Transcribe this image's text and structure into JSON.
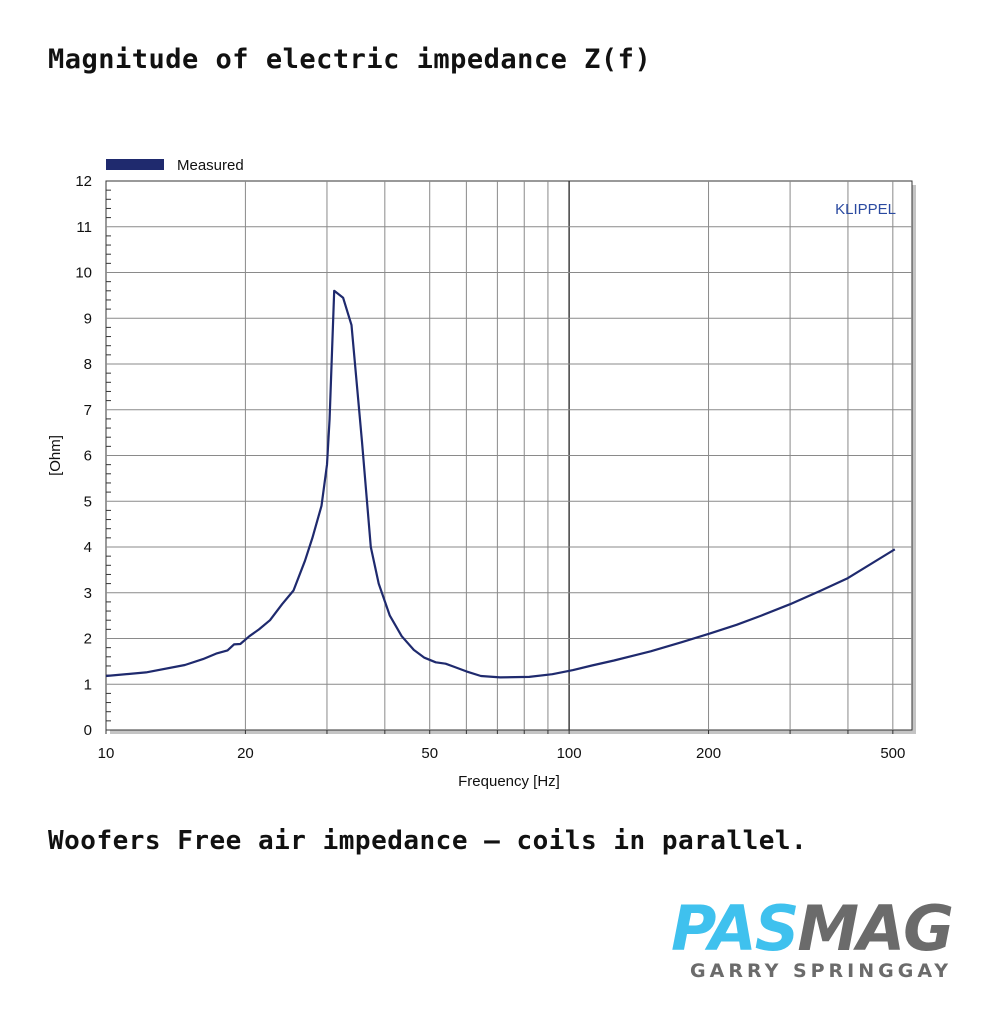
{
  "page": {
    "title": "Magnitude of electric impedance Z(f)",
    "caption": "Woofers Free air impedance – coils in parallel."
  },
  "brand": {
    "logo_part1": "PAS",
    "logo_part2": "MAG",
    "author": "GARRY SPRINGGAY",
    "colors": {
      "pas": "#3fc1ee",
      "mag": "#6b6b6b"
    }
  },
  "chart_data": {
    "type": "line",
    "title": "",
    "xlabel": "Frequency [Hz]",
    "ylabel": "[Ohm]",
    "xscale": "log",
    "xlim": [
      10,
      550
    ],
    "ylim": [
      0,
      12
    ],
    "xticks": [
      10,
      20,
      50,
      100,
      200,
      500
    ],
    "xtick_labels": [
      "10",
      "20",
      "50",
      "100",
      "200",
      "500"
    ],
    "yticks": [
      0,
      1,
      2,
      3,
      4,
      5,
      6,
      7,
      8,
      9,
      10,
      11,
      12
    ],
    "ytick_labels": [
      "0",
      "1",
      "2",
      "3",
      "4",
      "5",
      "6",
      "7",
      "8",
      "9",
      "10",
      "11",
      "12"
    ],
    "grid": true,
    "legend": "top-left",
    "watermark": "KLIPPEL",
    "series": [
      {
        "name": "Measured",
        "color": "#1f2a6e",
        "x": [
          10,
          12.2,
          14.8,
          16.2,
          17.3,
          18.3,
          18.9,
          19.5,
          20.4,
          21.4,
          22.6,
          24,
          25.4,
          26.9,
          27.9,
          29.2,
          30,
          30.4,
          31.1,
          32.5,
          33.9,
          35.7,
          37.3,
          38.8,
          41,
          43.5,
          46.2,
          48.7,
          51.5,
          54.1,
          56.5,
          60,
          64.5,
          71,
          82,
          92,
          102,
          112,
          125,
          150,
          175,
          200,
          230,
          260,
          300,
          350,
          400,
          505
        ],
        "y": [
          1.18,
          1.26,
          1.42,
          1.55,
          1.67,
          1.74,
          1.87,
          1.88,
          2.05,
          2.2,
          2.4,
          2.75,
          3.05,
          3.7,
          4.2,
          4.9,
          5.8,
          6.8,
          9.6,
          9.45,
          8.85,
          6.3,
          4.0,
          3.2,
          2.5,
          2.05,
          1.75,
          1.58,
          1.48,
          1.45,
          1.38,
          1.28,
          1.18,
          1.15,
          1.16,
          1.22,
          1.31,
          1.41,
          1.52,
          1.72,
          1.92,
          2.1,
          2.3,
          2.5,
          2.75,
          3.05,
          3.32,
          3.95
        ]
      }
    ]
  }
}
